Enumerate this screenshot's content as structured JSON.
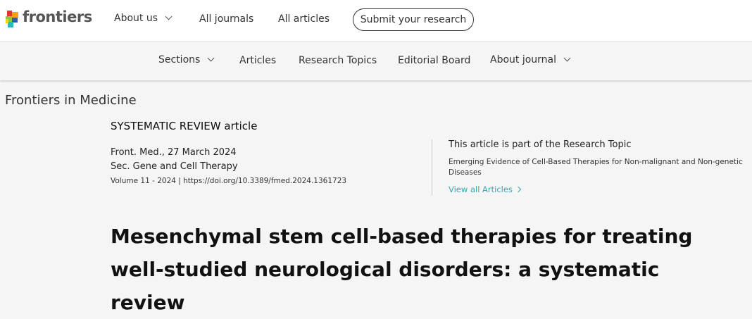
{
  "header": {
    "logo_text": "frontiers",
    "nav": [
      {
        "label": "About us"
      },
      {
        "label": "All journals"
      },
      {
        "label": "All articles"
      }
    ],
    "submit_label": "Submit your research"
  },
  "journal_nav": {
    "title": "Frontiers in Medicine",
    "items": [
      {
        "label": "Sections"
      },
      {
        "label": "Articles"
      },
      {
        "label": "Research Topics"
      },
      {
        "label": "Editorial Board"
      },
      {
        "label": "About journal"
      }
    ]
  },
  "article": {
    "type": "SYSTEMATIC REVIEW article",
    "journal_date": "Front. Med., 27 March 2024",
    "section": "Sec. Gene and Cell Therapy",
    "volume_doi": "Volume 11 - 2024 | https://doi.org/10.3389/fmed.2024.1361723",
    "title": "Mesenchymal stem cell-based therapies for treating well-studied neurological disorders: a systematic review"
  },
  "research_topic": {
    "heading": "This article is part of the Research Topic",
    "name": "Emerging Evidence of Cell-Based Therapies for Non-malignant and Non-genetic Diseases",
    "link": "View all Articles",
    "link_color": "#3aa5b0"
  }
}
